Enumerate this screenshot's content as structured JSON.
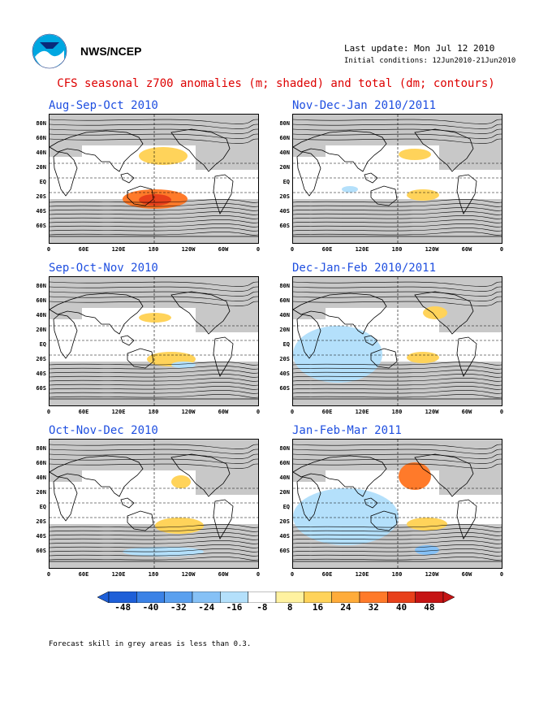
{
  "header": {
    "agency": "NWS/NCEP",
    "last_update": "Last update: Mon Jul 12 2010",
    "initial_conditions": "Initial conditions: 12Jun2010-21Jun2010",
    "main_title": "CFS seasonal z700 anomalies (m; shaded) and total (dm; contours)"
  },
  "panels": [
    {
      "title": "Aug-Sep-Oct 2010"
    },
    {
      "title": "Nov-Dec-Jan 2010/2011"
    },
    {
      "title": "Sep-Oct-Nov 2010"
    },
    {
      "title": "Dec-Jan-Feb 2010/2011"
    },
    {
      "title": "Oct-Nov-Dec 2010"
    },
    {
      "title": "Jan-Feb-Mar 2011"
    }
  ],
  "lat_labels": [
    "80N",
    "60N",
    "40N",
    "20N",
    "EQ",
    "20S",
    "40S",
    "60S"
  ],
  "lon_labels": [
    "0",
    "60E",
    "120E",
    "180",
    "120W",
    "60W",
    "0"
  ],
  "colorbar": {
    "labels": [
      "-48",
      "-40",
      "-32",
      "-24",
      "-16",
      "-8",
      "8",
      "16",
      "24",
      "32",
      "40",
      "48"
    ],
    "colors": [
      "#1e5fd8",
      "#3b82e6",
      "#5aa0ef",
      "#86c1f6",
      "#b4e0fb",
      "#ffffff",
      "#fff2a0",
      "#ffd35a",
      "#ffac3a",
      "#ff7a2a",
      "#e8401a",
      "#c61414"
    ]
  },
  "footnote": "Forecast skill in grey areas is less than 0.3."
}
